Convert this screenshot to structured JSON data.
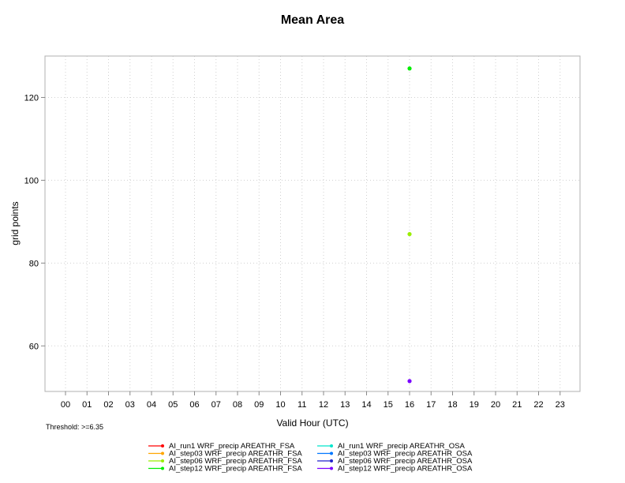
{
  "chart_data": {
    "type": "scatter",
    "title": "Mean Area",
    "xlabel": "Valid Hour (UTC)",
    "ylabel": "grid points",
    "categories": [
      "00",
      "01",
      "02",
      "03",
      "04",
      "05",
      "06",
      "07",
      "08",
      "09",
      "10",
      "11",
      "12",
      "13",
      "14",
      "15",
      "16",
      "17",
      "18",
      "19",
      "20",
      "21",
      "22",
      "23"
    ],
    "yticks": [
      60,
      80,
      100,
      120
    ],
    "ylim": [
      49,
      130
    ],
    "grid": true,
    "threshold_text": "Threshold: >=6.35",
    "legend_position": "bottom",
    "series": [
      {
        "name": "AI_run1 WRF_precip AREATHR_FSA",
        "color": "#ff0000",
        "points": []
      },
      {
        "name": "AI_step03 WRF_precip AREATHR_FSA",
        "color": "#ffa500",
        "points": []
      },
      {
        "name": "AI_step06 WRF_precip AREATHR_FSA",
        "color": "#99ee00",
        "points": [
          {
            "x": "16",
            "y": 87
          }
        ]
      },
      {
        "name": "AI_step12 WRF_precip AREATHR_FSA",
        "color": "#00ee00",
        "points": [
          {
            "x": "16",
            "y": 127
          }
        ]
      },
      {
        "name": "AI_run1 WRF_precip AREATHR_OSA",
        "color": "#00e5cc",
        "points": []
      },
      {
        "name": "AI_step03 WRF_precip AREATHR_OSA",
        "color": "#0077ff",
        "points": []
      },
      {
        "name": "AI_step06 WRF_precip AREATHR_OSA",
        "color": "#2222cc",
        "points": []
      },
      {
        "name": "AI_step12 WRF_precip AREATHR_OSA",
        "color": "#7a00ff",
        "points": [
          {
            "x": "16",
            "y": 51.5
          }
        ]
      }
    ]
  }
}
